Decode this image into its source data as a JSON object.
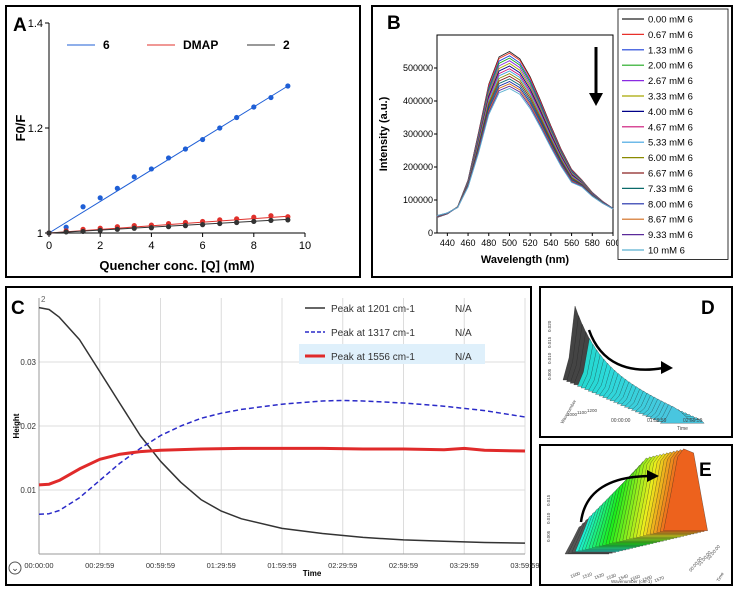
{
  "chart_data": [
    {
      "panel": "A",
      "type": "scatter",
      "xlabel": "Quencher conc. [Q] (mM)",
      "ylabel": "F0/F",
      "xlim": [
        0,
        10
      ],
      "ylim": [
        1,
        1.4
      ],
      "xticks": [
        "0",
        "2",
        "4",
        "6",
        "8",
        "10"
      ],
      "yticks": [
        "1",
        "1.2",
        "1.4"
      ],
      "legend_placement": "top",
      "series": [
        {
          "name": "6",
          "color": "#1f5fd6",
          "x": [
            0,
            0.67,
            1.33,
            2.0,
            2.67,
            3.33,
            4.0,
            4.67,
            5.33,
            6.0,
            6.67,
            7.33,
            8.0,
            8.67,
            9.33
          ],
          "y": [
            1.0,
            1.011,
            1.05,
            1.067,
            1.085,
            1.107,
            1.122,
            1.143,
            1.16,
            1.178,
            1.2,
            1.22,
            1.24,
            1.258,
            1.28
          ],
          "fit": [
            1.0,
            1.28
          ]
        },
        {
          "name": "DMAP",
          "color": "#e0302b",
          "x": [
            0,
            0.67,
            1.33,
            2.0,
            2.67,
            3.33,
            4.0,
            4.67,
            5.33,
            6.0,
            6.67,
            7.33,
            8.0,
            8.67,
            9.33
          ],
          "y": [
            1.0,
            1.004,
            1.007,
            1.009,
            1.012,
            1.014,
            1.015,
            1.018,
            1.02,
            1.022,
            1.025,
            1.027,
            1.03,
            1.033,
            1.031
          ],
          "fit": [
            1.0,
            1.032
          ]
        },
        {
          "name": "2",
          "color": "#333333",
          "x": [
            0,
            0.67,
            1.33,
            2.0,
            2.67,
            3.33,
            4.0,
            4.67,
            5.33,
            6.0,
            6.67,
            7.33,
            8.0,
            8.67,
            9.33
          ],
          "y": [
            1.0,
            1.002,
            1.003,
            1.005,
            1.007,
            1.009,
            1.01,
            1.012,
            1.014,
            1.016,
            1.018,
            1.02,
            1.022,
            1.024,
            1.025
          ],
          "fit": [
            1.0,
            1.026
          ]
        }
      ]
    },
    {
      "panel": "B",
      "type": "line",
      "xlabel": "Wavelength (nm)",
      "ylabel": "Intensity (a.u.)",
      "xlim": [
        430,
        600
      ],
      "ylim": [
        0,
        600000
      ],
      "xticks": [
        "440",
        "460",
        "480",
        "500",
        "520",
        "540",
        "560",
        "580",
        "600"
      ],
      "yticks": [
        "0",
        "100000",
        "200000",
        "300000",
        "400000",
        "500000"
      ],
      "legend_placement": "right",
      "annotation": "downward arrow near peak indicating decreasing intensity",
      "series": [
        {
          "name": "0.00 mM 6",
          "color": "#222222",
          "peak": 550000
        },
        {
          "name": "0.67 mM 6",
          "color": "#e8302a",
          "peak": 545000
        },
        {
          "name": "1.33 mM 6",
          "color": "#1a3fd8",
          "peak": 537000
        },
        {
          "name": "2.00 mM 6",
          "color": "#1fa81f",
          "peak": 530000
        },
        {
          "name": "2.67 mM 6",
          "color": "#8a2be2",
          "peak": 522000
        },
        {
          "name": "3.33 mM 6",
          "color": "#a8a800",
          "peak": 514000
        },
        {
          "name": "4.00 mM 6",
          "color": "#000088",
          "peak": 506000
        },
        {
          "name": "4.67 mM 6",
          "color": "#cc1177",
          "peak": 498000
        },
        {
          "name": "5.33 mM 6",
          "color": "#3fa3e0",
          "peak": 491000
        },
        {
          "name": "6.00 mM 6",
          "color": "#8a8a00",
          "peak": 483000
        },
        {
          "name": "6.67 mM 6",
          "color": "#8a2222",
          "peak": 475000
        },
        {
          "name": "7.33 mM 6",
          "color": "#0a6a6a",
          "peak": 467000
        },
        {
          "name": "8.00 mM 6",
          "color": "#1a2aa8",
          "peak": 459000
        },
        {
          "name": "8.67 mM 6",
          "color": "#d06a1a",
          "peak": 452000
        },
        {
          "name": "9.33 mM 6",
          "color": "#5a2a9a",
          "peak": 445000
        },
        {
          "name": "10 mM 6",
          "color": "#5ab0d0",
          "peak": 438000
        }
      ]
    },
    {
      "panel": "C",
      "type": "line",
      "xlabel": "Time",
      "ylabel": "Height",
      "xlim_minutes": [
        0,
        240
      ],
      "ylim": [
        0,
        0.04
      ],
      "xticks": [
        "00:00:00",
        "00:29:59",
        "00:59:59",
        "01:29:59",
        "01:59:59",
        "02:29:59",
        "02:59:59",
        "03:29:59",
        "03:59:59"
      ],
      "yticks": [
        "0.01",
        "0.02",
        "0.03"
      ],
      "top_value_label": "2",
      "grid": true,
      "legend_placement": "top-right",
      "series": [
        {
          "name": "Peak at 1201 cm-1",
          "value": "N/A",
          "color": "#333333",
          "style": "solid",
          "x": [
            0,
            5,
            10,
            20,
            30,
            40,
            50,
            60,
            70,
            80,
            90,
            100,
            120,
            140,
            160,
            180,
            200,
            220,
            240
          ],
          "y": [
            0.0385,
            0.0382,
            0.037,
            0.0335,
            0.0285,
            0.0235,
            0.0185,
            0.0145,
            0.0112,
            0.0085,
            0.0067,
            0.0055,
            0.004,
            0.0032,
            0.0026,
            0.0022,
            0.002,
            0.0018,
            0.0017
          ]
        },
        {
          "name": "Peak at 1317 cm-1",
          "value": "N/A",
          "color": "#2a2ac8",
          "style": "dashed",
          "x": [
            0,
            5,
            10,
            20,
            30,
            40,
            50,
            60,
            70,
            80,
            90,
            100,
            120,
            140,
            150,
            160,
            180,
            200,
            220,
            240
          ],
          "y": [
            0.0062,
            0.0063,
            0.0068,
            0.0088,
            0.0115,
            0.0142,
            0.0165,
            0.0185,
            0.02,
            0.0212,
            0.022,
            0.0226,
            0.0234,
            0.0239,
            0.024,
            0.0239,
            0.0236,
            0.0231,
            0.0224,
            0.0214
          ]
        },
        {
          "name": "Peak at 1556 cm-1",
          "value": "N/A",
          "color": "#e02a2a",
          "style": "solid",
          "x": [
            0,
            5,
            10,
            20,
            30,
            40,
            50,
            60,
            80,
            100,
            120,
            140,
            160,
            180,
            200,
            210,
            220,
            240
          ],
          "y": [
            0.0108,
            0.0109,
            0.0115,
            0.0133,
            0.0148,
            0.0156,
            0.016,
            0.0162,
            0.0164,
            0.0165,
            0.0165,
            0.0165,
            0.0164,
            0.0164,
            0.0163,
            0.0165,
            0.0162,
            0.0161
          ]
        }
      ]
    },
    {
      "panel": "D",
      "type": "area",
      "description_style": "3D waterfall surface, gray to cyan",
      "xlabel": "Time",
      "ylabel": "Wavenumber",
      "time_ticks": [
        "00:00:00",
        "01:59:59",
        "02:59:59"
      ],
      "wavenumber_ticks": [
        "1000",
        "1100",
        "1200"
      ],
      "z_ticks": [
        "0.005",
        "0.010",
        "0.015",
        "0.020"
      ]
    },
    {
      "panel": "E",
      "type": "area",
      "description_style": "3D waterfall surface, cyan-green-yellow-orange",
      "xlabel": "Wavenumber (cm-1)",
      "ylabel": "Time",
      "wavenumber_ticks": [
        "1500",
        "1510",
        "1520",
        "1530",
        "1540",
        "1550",
        "1560",
        "1570"
      ],
      "time_ticks": [
        "00:00:00",
        "01:00:00",
        "02:00:00"
      ],
      "z_ticks": [
        "0.005",
        "0.010",
        "0.015"
      ]
    }
  ],
  "panel_labels": {
    "a": "A",
    "b": "B",
    "c": "C",
    "d": "D",
    "e": "E"
  },
  "ui": {
    "chevron_symbol": "⌄"
  }
}
